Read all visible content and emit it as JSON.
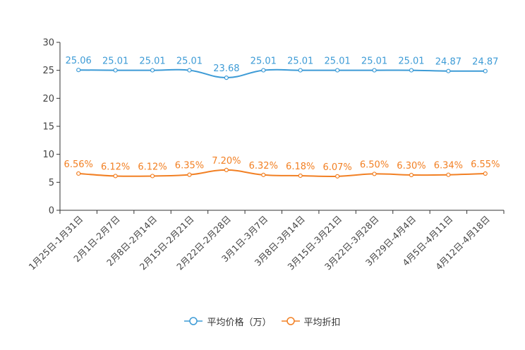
{
  "chart_data": {
    "type": "line",
    "categories": [
      "1月25日-1月31日",
      "2月1日-2月7日",
      "2月8日-2月14日",
      "2月15日-2月21日",
      "2月22日-2月28日",
      "3月1日-3月7日",
      "3月8日-3月14日",
      "3月15日-3月21日",
      "3月22日-3月28日",
      "3月29日-4月4日",
      "4月5日-4月11日",
      "4月12日-4月18日"
    ],
    "ylim": [
      0,
      30
    ],
    "yticks": [
      0,
      5,
      10,
      15,
      20,
      25,
      30
    ],
    "series": [
      {
        "name": "平均价格（万）",
        "color": "#3d9bd6",
        "values": [
          25.06,
          25.01,
          25.01,
          25.01,
          23.68,
          25.01,
          25.01,
          25.01,
          25.01,
          25.01,
          24.87,
          24.87
        ],
        "labels": [
          "25.06",
          "25.01",
          "25.01",
          "25.01",
          "23.68",
          "25.01",
          "25.01",
          "25.01",
          "25.01",
          "25.01",
          "24.87",
          "24.87"
        ]
      },
      {
        "name": "平均折扣",
        "color": "#f28024",
        "values": [
          6.56,
          6.12,
          6.12,
          6.35,
          7.2,
          6.32,
          6.18,
          6.07,
          6.5,
          6.3,
          6.34,
          6.55
        ],
        "labels": [
          "6.56%",
          "6.12%",
          "6.12%",
          "6.35%",
          "7.20%",
          "6.32%",
          "6.18%",
          "6.07%",
          "6.50%",
          "6.30%",
          "6.34%",
          "6.55%"
        ]
      }
    ],
    "legend_position": "bottom-center"
  }
}
